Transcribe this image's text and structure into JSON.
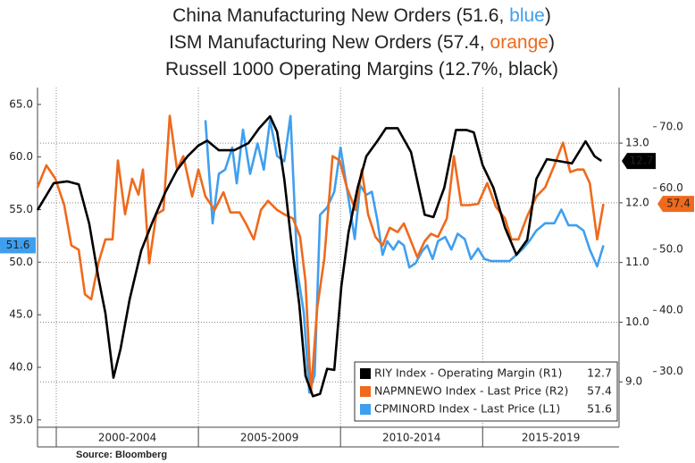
{
  "chart_data": {
    "type": "line",
    "title": [
      [
        {
          "text": "China Manufacturing New Orders (51.6, "
        },
        {
          "text": "blue",
          "color": "#3f9fef"
        },
        {
          "text": ")"
        }
      ],
      [
        {
          "text": "ISM Manufacturing New Orders (57.4, "
        },
        {
          "text": "orange",
          "color": "#ef6a1c"
        },
        {
          "text": ")"
        }
      ],
      [
        {
          "text": "Russell 1000 Operating Margins (12.7%, black)"
        }
      ]
    ],
    "source": "Source: Bloomberg",
    "xlim": [
      1999.34,
      2019.8
    ],
    "xticks": [
      {
        "value": 2000,
        "label": "2000-2004"
      },
      {
        "value": 2005,
        "label": "2005-2009"
      },
      {
        "value": 2010,
        "label": "2010-2014"
      },
      {
        "value": 2015,
        "label": "2015-2019"
      }
    ],
    "ylim": [
      34.3,
      66.6
    ],
    "yticks": [
      {
        "value": 35,
        "label": "35.0"
      },
      {
        "value": 40,
        "label": "40.0"
      },
      {
        "value": 45,
        "label": "45.0"
      },
      {
        "value": 50,
        "label": "50.0"
      },
      {
        "value": 55,
        "label": "55.0"
      },
      {
        "value": 60,
        "label": "60.0"
      },
      {
        "value": 65,
        "label": "65.0"
      }
    ],
    "y2lim": [
      8.24,
      13.93
    ],
    "y2ticks": [
      {
        "value": 9,
        "label": "9.0"
      },
      {
        "value": 10,
        "label": "10.0"
      },
      {
        "value": 11,
        "label": "11.0"
      },
      {
        "value": 12,
        "label": "12.0"
      },
      {
        "value": 13,
        "label": "13.0"
      }
    ],
    "y3lim": [
      20.9,
      76.4
    ],
    "y3ticks": [
      {
        "value": 30,
        "label": "30.0"
      },
      {
        "value": 40,
        "label": "40.0"
      },
      {
        "value": 50,
        "label": "50.0"
      },
      {
        "value": 60,
        "label": "60.0"
      },
      {
        "value": 70,
        "label": "70.0"
      }
    ],
    "grid": true,
    "grid_axis": "y2",
    "legend": "bottom-right",
    "series": [
      {
        "name": "RIY Index - Operating Margin (R1)",
        "color": "#000000",
        "axis": "y2",
        "x": [
          1999.34,
          1999.91,
          2000.38,
          2000.79,
          2001.16,
          2001.48,
          2001.73,
          2002.01,
          2002.26,
          2002.58,
          2002.99,
          2003.36,
          2003.84,
          2004.25,
          2004.62,
          2005.0,
          2005.31,
          2005.72,
          2006.26,
          2006.76,
          2007.14,
          2007.52,
          2007.77,
          2008.02,
          2008.27,
          2008.55,
          2008.77,
          2009.03,
          2009.28,
          2009.53,
          2009.78,
          2010.03,
          2010.28,
          2010.6,
          2010.91,
          2011.29,
          2011.6,
          2012.01,
          2012.48,
          2012.96,
          2013.27,
          2013.65,
          2014.06,
          2014.43,
          2014.69,
          2015.0,
          2015.38,
          2015.79,
          2016.19,
          2016.57,
          2016.89,
          2017.26,
          2017.67,
          2018.14,
          2018.62,
          2018.94,
          2019.18
        ],
        "values": [
          11.88,
          12.33,
          12.36,
          12.31,
          11.65,
          10.75,
          10.15,
          9.07,
          9.55,
          10.38,
          11.2,
          11.65,
          12.18,
          12.55,
          12.78,
          12.96,
          13.04,
          12.88,
          12.88,
          13.0,
          13.25,
          13.45,
          13.19,
          12.4,
          11.35,
          10.3,
          9.1,
          8.76,
          8.8,
          9.22,
          9.2,
          10.6,
          11.5,
          12.25,
          12.78,
          13.03,
          13.25,
          13.25,
          12.85,
          11.8,
          11.76,
          12.25,
          13.22,
          13.22,
          13.18,
          12.63,
          12.25,
          11.58,
          11.13,
          11.38,
          12.4,
          12.73,
          12.7,
          12.66,
          13.03,
          12.78,
          12.7
        ]
      },
      {
        "name": "NAPMNEWO Index - Last Price (R2)",
        "color": "#ef6a1c",
        "axis": "y3",
        "x": [
          1999.34,
          1999.65,
          1999.97,
          2000.28,
          2000.53,
          2000.79,
          2001.01,
          2001.23,
          2001.48,
          2001.73,
          2001.98,
          2002.17,
          2002.42,
          2002.67,
          2002.89,
          2003.05,
          2003.27,
          2003.52,
          2003.77,
          2003.99,
          2004.25,
          2004.47,
          2004.78,
          2005.0,
          2005.25,
          2005.57,
          2005.88,
          2006.13,
          2006.45,
          2006.67,
          2006.95,
          2007.2,
          2007.45,
          2007.77,
          2008.02,
          2008.33,
          2008.58,
          2008.77,
          2008.96,
          2009.18,
          2009.43,
          2009.72,
          2009.97,
          2010.22,
          2010.53,
          2010.75,
          2010.97,
          2011.23,
          2011.48,
          2011.73,
          2012.01,
          2012.23,
          2012.48,
          2012.7,
          2012.96,
          2013.18,
          2013.43,
          2013.74,
          2013.99,
          2014.25,
          2014.53,
          2014.84,
          2015.16,
          2015.47,
          2015.79,
          2016.01,
          2016.26,
          2016.57,
          2016.89,
          2017.2,
          2017.52,
          2017.83,
          2018.08,
          2018.33,
          2018.55,
          2018.77,
          2019.03,
          2019.25
        ],
        "values": [
          60.1,
          63.7,
          61.5,
          57.2,
          50.6,
          49.9,
          42.6,
          41.8,
          47.7,
          51.6,
          51.6,
          64.5,
          55.7,
          61.5,
          58.9,
          63.0,
          47.7,
          55.7,
          56.4,
          71.8,
          63.0,
          65.2,
          58.6,
          63.0,
          58.6,
          56.4,
          59.3,
          56.0,
          56.0,
          54.2,
          51.6,
          56.4,
          57.9,
          56.4,
          55.7,
          55.0,
          52.0,
          44.7,
          26.5,
          40.4,
          48.4,
          65.2,
          64.5,
          60.1,
          56.4,
          63.0,
          55.7,
          52.0,
          50.6,
          53.5,
          52.8,
          54.2,
          51.3,
          48.7,
          51.3,
          52.5,
          52.0,
          55.0,
          65.2,
          57.2,
          57.2,
          57.4,
          60.8,
          56.9,
          55.0,
          51.6,
          51.6,
          55.4,
          58.6,
          60.1,
          63.7,
          67.4,
          62.6,
          63.0,
          63.0,
          60.8,
          51.6,
          57.4
        ]
      },
      {
        "name": "CPMINORD Index - Last Price (L1)",
        "color": "#3f9fef",
        "axis": "y",
        "x": [
          2005.25,
          2005.5,
          2005.72,
          2005.94,
          2006.19,
          2006.35,
          2006.57,
          2006.82,
          2007.08,
          2007.3,
          2007.52,
          2007.77,
          2008.02,
          2008.24,
          2008.49,
          2008.71,
          2008.9,
          2009.09,
          2009.28,
          2009.53,
          2009.78,
          2010.0,
          2010.22,
          2010.5,
          2010.69,
          2010.91,
          2011.1,
          2011.29,
          2011.48,
          2011.64,
          2011.86,
          2012.04,
          2012.23,
          2012.42,
          2012.64,
          2012.86,
          2013.05,
          2013.24,
          2013.43,
          2013.68,
          2013.9,
          2014.12,
          2014.37,
          2014.59,
          2014.84,
          2015.06,
          2015.31,
          2015.63,
          2015.94,
          2016.19,
          2016.42,
          2016.64,
          2016.89,
          2017.2,
          2017.52,
          2017.77,
          2018.02,
          2018.3,
          2018.55,
          2018.77,
          2019.03,
          2019.25
        ],
        "values": [
          63.5,
          53.7,
          58.4,
          58.8,
          60.9,
          57.5,
          62.6,
          58.4,
          61.3,
          58.8,
          63.5,
          60.1,
          59.6,
          63.9,
          49.0,
          45.2,
          37.6,
          39.3,
          54.5,
          55.2,
          56.7,
          60.9,
          57.1,
          52.2,
          57.3,
          56.4,
          56.7,
          54.1,
          50.7,
          52.0,
          51.2,
          52.0,
          51.6,
          49.5,
          49.9,
          51.0,
          51.6,
          50.3,
          52.0,
          52.4,
          51.2,
          52.7,
          52.2,
          50.3,
          51.3,
          50.3,
          50.1,
          50.1,
          50.1,
          50.7,
          51.3,
          52.0,
          53.0,
          53.7,
          53.7,
          55.0,
          53.5,
          53.5,
          53.0,
          51.2,
          49.6,
          51.6
        ]
      }
    ]
  }
}
